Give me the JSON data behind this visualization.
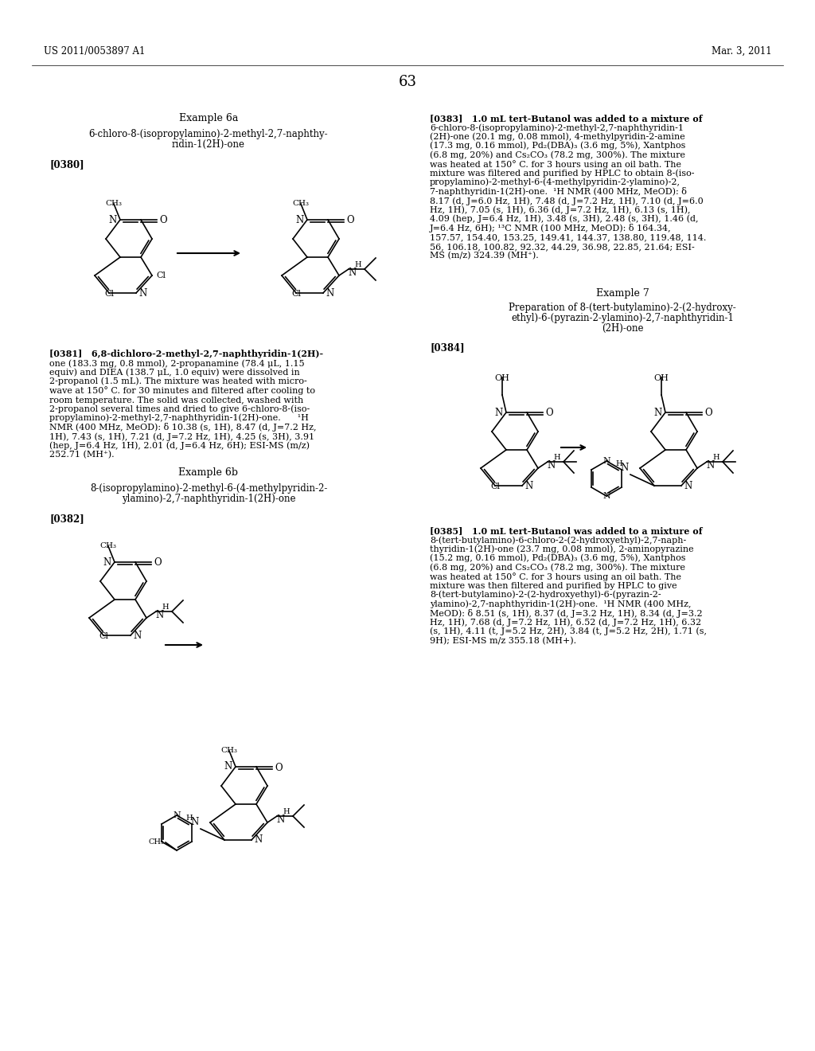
{
  "background_color": "#ffffff",
  "header_left": "US 2011/0053897 A1",
  "header_right": "Mar. 3, 2011",
  "page_number": "63",
  "example_6a_title": "Example 6a",
  "example_6a_sub1": "6-chloro-8-(isopropylamino)-2-methyl-2,7-naphthy-",
  "example_6a_sub2": "ridin-1(2H)-one",
  "para_0380": "[0380]",
  "para_0381_lines": [
    "[0381]   6,8-dichloro-2-methyl-2,7-naphthyridin-1(2H)-",
    "one (183.3 mg, 0.8 mmol), 2-propanamine (78.4 μL, 1.15",
    "equiv) and DIEA (138.7 μL, 1.0 equiv) were dissolved in",
    "2-propanol (1.5 mL). The mixture was heated with micro-",
    "wave at 150° C. for 30 minutes and filtered after cooling to",
    "room temperature. The solid was collected, washed with",
    "2-propanol several times and dried to give 6-chloro-8-(iso-",
    "propylamino)-2-methyl-2,7-naphthyridin-1(2H)-one.      ¹H",
    "NMR (400 MHz, MeOD): δ 10.38 (s, 1H), 8.47 (d, J=7.2 Hz,",
    "1H), 7.43 (s, 1H), 7.21 (d, J=7.2 Hz, 1H), 4.25 (s, 3H), 3.91",
    "(hep, J=6.4 Hz, 1H), 2.01 (d, J=6.4 Hz, 6H); ESI-MS (m/z)",
    "252.71 (MH⁺)."
  ],
  "example_6b_title": "Example 6b",
  "example_6b_sub1": "8-(isopropylamino)-2-methyl-6-(4-methylpyridin-2-",
  "example_6b_sub2": "ylamino)-2,7-naphthyridin-1(2H)-one",
  "para_0382": "[0382]",
  "para_0383_lines": [
    "[0383]   1.0 mL tert-Butanol was added to a mixture of",
    "6-chloro-8-(isopropylamino)-2-methyl-2,7-naphthyridin-1",
    "(2H)-one (20.1 mg, 0.08 mmol), 4-methylpyridin-2-amine",
    "(17.3 mg, 0.16 mmol), Pd₂(DBA)₃ (3.6 mg, 5%), Xantphos",
    "(6.8 mg, 20%) and Cs₂CO₃ (78.2 mg, 300%). The mixture",
    "was heated at 150° C. for 3 hours using an oil bath. The",
    "mixture was filtered and purified by HPLC to obtain 8-(iso-",
    "propylamino)-2-methyl-6-(4-methylpyridin-2-ylamino)-2,",
    "7-naphthyridin-1(2H)-one.  ¹H NMR (400 MHz, MeOD): δ",
    "8.17 (d, J=6.0 Hz, 1H), 7.48 (d, J=7.2 Hz, 1H), 7.10 (d, J=6.0",
    "Hz, 1H), 7.05 (s, 1H), 6.36 (d, J=7.2 Hz, 1H), 6.13 (s, 1H),",
    "4.09 (hep, J=6.4 Hz, 1H), 3.48 (s, 3H), 2.48 (s, 3H), 1.46 (d,",
    "J=6.4 Hz, 6H); ¹³C NMR (100 MHz, MeOD): δ 164.34,",
    "157.57, 154.40, 153.25, 149.41, 144.37, 138.80, 119.48, 114.",
    "56, 106.18, 100.82, 92.32, 44.29, 36.98, 22.85, 21.64; ESI-",
    "MS (m/z) 324.39 (MH⁺)."
  ],
  "example_7_title": "Example 7",
  "example_7_sub1": "Preparation of 8-(tert-butylamino)-2-(2-hydroxy-",
  "example_7_sub2": "ethyl)-6-(pyrazin-2-ylamino)-2,7-naphthyridin-1",
  "example_7_sub3": "(2H)-one",
  "para_0384": "[0384]",
  "para_0385_lines": [
    "[0385]   1.0 mL tert-Butanol was added to a mixture of",
    "8-(tert-butylamino)-6-chloro-2-(2-hydroxyethyl)-2,7-naph-",
    "thyridin-1(2H)-one (23.7 mg, 0.08 mmol), 2-aminopyrazine",
    "(15.2 mg, 0.16 mmol), Pd₂(DBA)₃ (3.6 mg, 5%), Xantphos",
    "(6.8 mg, 20%) and Cs₂CO₃ (78.2 mg, 300%). The mixture",
    "was heated at 150° C. for 3 hours using an oil bath. The",
    "mixture was then filtered and purified by HPLC to give",
    "8-(tert-butylamino)-2-(2-hydroxyethyl)-6-(pyrazin-2-",
    "ylamino)-2,7-naphthyridin-1(2H)-one.  ¹H NMR (400 MHz,",
    "MeOD): δ 8.51 (s, 1H), 8.37 (d, J=3.2 Hz, 1H), 8.34 (d, J=3.2",
    "Hz, 1H), 7.68 (d, J=7.2 Hz, 1H), 6.52 (d, J=7.2 Hz, 1H), 6.32",
    "(s, 1H), 4.11 (t, J=5.2 Hz, 2H), 3.84 (t, J=5.2 Hz, 2H), 1.71 (s,",
    "9H); ESI-MS m/z 355.18 (MH+)."
  ]
}
